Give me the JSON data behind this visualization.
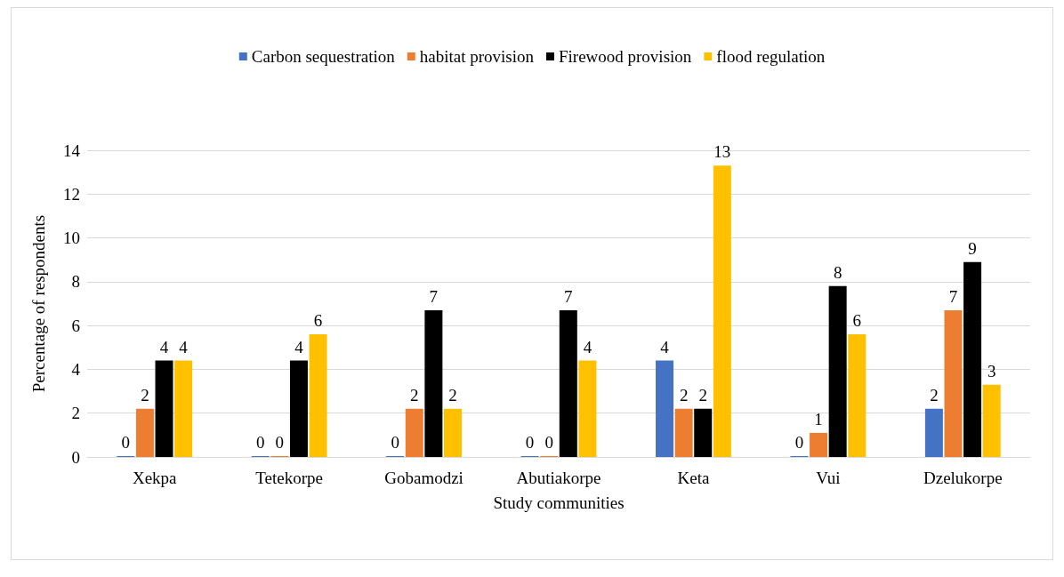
{
  "chart_data": {
    "type": "bar",
    "xlabel": "Study communities",
    "ylabel": "Percentage of respondents",
    "categories": [
      "Xekpa",
      "Tetekorpe",
      "Gobamodzi",
      "Abutiakorpe",
      "Keta",
      "Vui",
      "Dzelukorpe"
    ],
    "series": [
      {
        "name": "Carbon sequestration",
        "color": "#4472c4",
        "values": [
          0,
          0,
          0,
          0,
          4.4,
          0,
          2.2
        ],
        "value_labels": [
          "0",
          "0",
          "0",
          "0",
          "4",
          "0",
          "2"
        ]
      },
      {
        "name": "habitat provision",
        "color": "#ed7d31",
        "values": [
          2.2,
          0,
          2.2,
          0,
          2.2,
          1.1,
          6.7
        ],
        "value_labels": [
          "2",
          "0",
          "2",
          "0",
          "2",
          "1",
          "7"
        ]
      },
      {
        "name": "Firewood provision",
        "color": "#000000",
        "values": [
          4.4,
          4.4,
          6.7,
          6.7,
          2.2,
          7.8,
          8.9
        ],
        "value_labels": [
          "4",
          "4",
          "7",
          "7",
          "2",
          "8",
          "9"
        ]
      },
      {
        "name": "flood regulation",
        "color": "#ffc000",
        "values": [
          4.4,
          5.6,
          2.2,
          4.4,
          13.3,
          5.6,
          3.3
        ],
        "value_labels": [
          "4",
          "6",
          "2",
          "4",
          "13",
          "6",
          "3"
        ]
      }
    ],
    "ylim": [
      0,
      14
    ],
    "yticks": [
      0,
      2,
      4,
      6,
      8,
      10,
      12,
      14
    ],
    "grid": "y",
    "legend": "top"
  }
}
